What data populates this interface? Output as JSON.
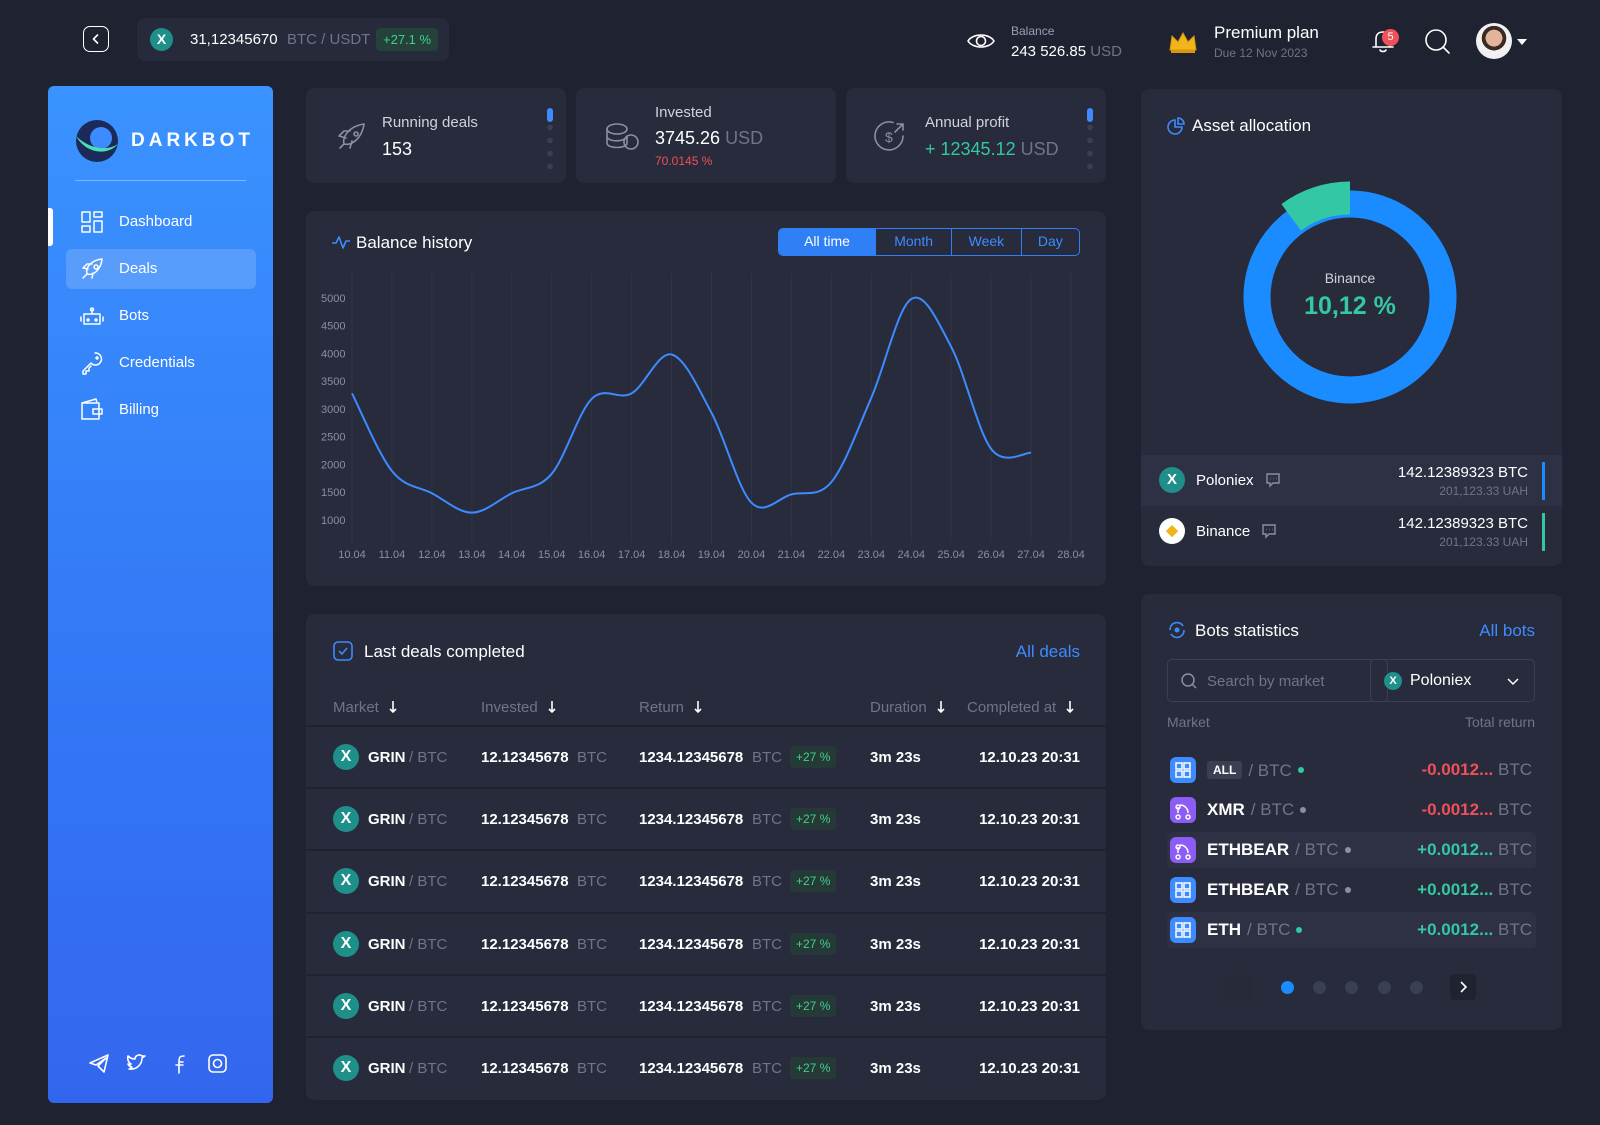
{
  "topbar": {
    "ticker": {
      "value": "31,12345670",
      "pair": "BTC / USDT",
      "change": "+27.1 %"
    },
    "balance": {
      "label": "Balance",
      "value": "243 526.85",
      "unit": "USD"
    },
    "plan": {
      "name": "Premium plan",
      "due": "Due 12 Nov 2023"
    },
    "notifications": "5"
  },
  "sidebar": {
    "logo": "DARKBOT",
    "nav": [
      "Dashboard",
      "Deals",
      "Bots",
      "Credentials",
      "Billing"
    ],
    "active": 1
  },
  "stats": [
    {
      "label": "Running deals",
      "value": "153"
    },
    {
      "label": "Invested",
      "value": "3745.26",
      "unit": "USD",
      "sub": "70.0145 %"
    },
    {
      "label": "Annual profit",
      "value": "+ 12345.12",
      "unit": "USD"
    }
  ],
  "balance_history": {
    "title": "Balance history",
    "periods": [
      "All time",
      "Month",
      "Week",
      "Day"
    ],
    "active_period": 0,
    "x": [
      "10.04",
      "11.04",
      "12.04",
      "13.04",
      "14.04",
      "15.04",
      "16.04",
      "17.04",
      "18.04",
      "19.04",
      "20.04",
      "21.04",
      "22.04",
      "23.04",
      "24.04",
      "25.04",
      "26.04",
      "27.04",
      "28.04"
    ],
    "values": [
      3300,
      1900,
      1500,
      1150,
      1500,
      1850,
      3200,
      3300,
      4000,
      2950,
      1330,
      1480,
      1700,
      3220,
      5000,
      4140,
      2300,
      2230,
      null
    ],
    "ylim": [
      1000,
      5000
    ],
    "yticks": [
      1000,
      1500,
      2000,
      2500,
      3000,
      3500,
      4000,
      4500,
      5000
    ],
    "color": "#3d8bff"
  },
  "deals": {
    "title": "Last deals completed",
    "link": "All deals",
    "columns": [
      "Market",
      "Invested",
      "Return",
      "Duration",
      "Completed at"
    ],
    "rows": [
      [
        "GRIN",
        "/ BTC",
        "12.12345678",
        "BTC",
        "1234.12345678",
        "BTC",
        "+27 %",
        "3m 23s",
        "12.10.23 20:31"
      ],
      [
        "GRIN",
        "/ BTC",
        "12.12345678",
        "BTC",
        "1234.12345678",
        "BTC",
        "+27 %",
        "3m 23s",
        "12.10.23 20:31"
      ],
      [
        "GRIN",
        "/ BTC",
        "12.12345678",
        "BTC",
        "1234.12345678",
        "BTC",
        "+27 %",
        "3m 23s",
        "12.10.23 20:31"
      ],
      [
        "GRIN",
        "/ BTC",
        "12.12345678",
        "BTC",
        "1234.12345678",
        "BTC",
        "+27 %",
        "3m 23s",
        "12.10.23 20:31"
      ],
      [
        "GRIN",
        "/ BTC",
        "12.12345678",
        "BTC",
        "1234.12345678",
        "BTC",
        "+27 %",
        "3m 23s",
        "12.10.23 20:31"
      ],
      [
        "GRIN",
        "/ BTC",
        "12.12345678",
        "BTC",
        "1234.12345678",
        "BTC",
        "+27 %",
        "3m 23s",
        "12.10.23 20:31"
      ]
    ]
  },
  "assets": {
    "title": "Asset allocation",
    "center_label": "Binance",
    "share": 10.12,
    "share_label": "10,12 %",
    "colors": [
      "#1a8cff",
      "#34c7a5"
    ],
    "exchanges": [
      {
        "name": "Poloniex",
        "amount": "142.12389323 BTC",
        "fiat": "201,123.33 UAH",
        "color": "#1a8cff"
      },
      {
        "name": "Binance",
        "amount": "142.12389323 BTC",
        "fiat": "201,123.33 UAH",
        "color": "#34c7a5"
      }
    ]
  },
  "bots": {
    "title": "Bots statistics",
    "link": "All bots",
    "search": "Search by market",
    "market": "Poloniex",
    "columns": [
      "Market",
      "Total return"
    ],
    "rows": [
      {
        "badge": "ALL",
        "pair": "/ BTC",
        "return": "-0.0012...",
        "unit": "BTC",
        "status": "#34c7a5",
        "return_color": "#f0505a",
        "icon_color": "#3d8bff"
      },
      {
        "coin": "XMR",
        "pair": "/ BTC",
        "return": "-0.0012...",
        "unit": "BTC",
        "status": "#8a8fa3",
        "return_color": "#f0505a",
        "icon_color": "#8b5cf6"
      },
      {
        "coin": "ETHBEAR",
        "pair": "/ BTC",
        "return": "+0.0012...",
        "unit": "BTC",
        "status": "#8a8fa3",
        "return_color": "#34c7a5",
        "icon_color": "#8b5cf6"
      },
      {
        "coin": "ETHBEAR",
        "pair": "/ BTC",
        "return": "+0.0012...",
        "unit": "BTC",
        "status": "#8a8fa3",
        "return_color": "#34c7a5",
        "icon_color": "#3d8bff"
      },
      {
        "coin": "ETH",
        "pair": "/ BTC",
        "return": "+0.0012...",
        "unit": "BTC",
        "status": "#34c7a5",
        "return_color": "#34c7a5",
        "icon_color": "#3d8bff"
      }
    ]
  }
}
